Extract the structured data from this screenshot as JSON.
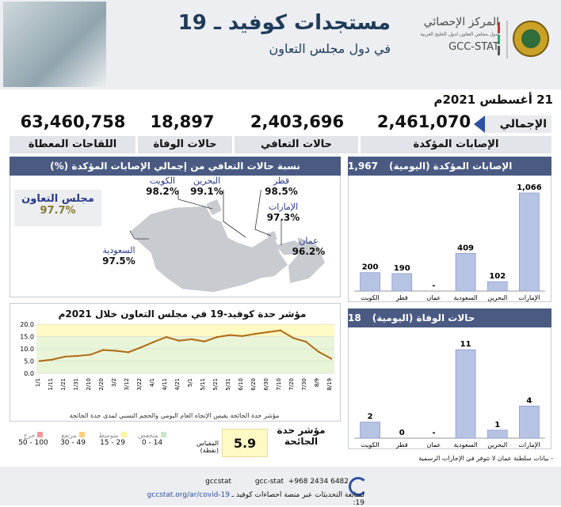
{
  "header": {
    "title": "مستجدات كوفيد ـ 19",
    "subtitle": "في دول مجلس التعاون",
    "org_name_ar": "المركز الإحصائي",
    "org_name_ar_sub": "لدول مجلس التعاون لدول الخليج العربية",
    "org_name_en": "GCC-STAT"
  },
  "date": "21 أغسطس 2021م",
  "totals": {
    "label": "الإجمالي",
    "confirmed": {
      "value": "2,461,070",
      "label": "الإصابات المؤكدة"
    },
    "recovered": {
      "value": "2,403,696",
      "label": "حالات التعافي"
    },
    "deaths": {
      "value": "18,897",
      "label": "حالات الوفاة"
    },
    "vaccines": {
      "value": "63,460,758",
      "label": "اللقاحات المعطاة"
    }
  },
  "recovery_map": {
    "title": "نسبة حالات التعافي من إجمالي الإصابات المؤكدة (%)",
    "gcc_label": "مجلس التعاون",
    "gcc_value": "97.7%",
    "countries": [
      {
        "name": "الكويت",
        "value": "98.2%"
      },
      {
        "name": "البحرين",
        "value": "99.1%"
      },
      {
        "name": "قطر",
        "value": "98.5%"
      },
      {
        "name": "الإمارات",
        "value": "97.3%"
      },
      {
        "name": "عمان",
        "value": "96.2%"
      },
      {
        "name": "السعودية",
        "value": "97.5%"
      }
    ]
  },
  "chart_data": [
    {
      "type": "bar",
      "title": "الإصابات المؤكدة (اليومية)",
      "total": "1,967",
      "categories": [
        "الكويت",
        "قطر",
        "عمان",
        "السعودية",
        "البحرين",
        "الإمارات"
      ],
      "values": [
        200,
        190,
        null,
        409,
        102,
        1066
      ],
      "labels": [
        "200",
        "190",
        "-",
        "409",
        "102",
        "1,066"
      ],
      "ylim": [
        0,
        1100
      ]
    },
    {
      "type": "bar",
      "title": "حالات الوفاة (اليومية)",
      "total": "18",
      "categories": [
        "الكويت",
        "قطر",
        "عمان",
        "السعودية",
        "البحرين",
        "الإمارات"
      ],
      "values": [
        2,
        0,
        null,
        11,
        1,
        4
      ],
      "labels": [
        "2",
        "0",
        "-",
        "11",
        "1",
        "4"
      ],
      "ylim": [
        0,
        12
      ]
    },
    {
      "type": "line",
      "title": "مؤشر حدة كوفيد-19 في مجلس التعاون خلال 2021م",
      "note": "مؤشر حدة الجائحة يقيس الإتجاه العام اليومي والحجم النسبي لمدى حدة الجائحة",
      "ylim": [
        0,
        20
      ],
      "yticks": [
        "0.0",
        "5.0",
        "10.0",
        "15.0",
        "20.0"
      ],
      "x_ticks": [
        "1/1",
        "1/11",
        "1/21",
        "1/31",
        "2/10",
        "2/20",
        "3/2",
        "3/12",
        "3/22",
        "4/1",
        "4/11",
        "4/21",
        "5/1",
        "5/11",
        "5/21",
        "5/31",
        "6/10",
        "6/20",
        "6/30",
        "7/10",
        "7/20",
        "7/30",
        "8/9",
        "8/19"
      ],
      "x": [
        "1/1",
        "1/11",
        "1/21",
        "1/31",
        "2/10",
        "2/20",
        "3/2",
        "3/12",
        "3/22",
        "4/1",
        "4/11",
        "4/21",
        "5/1",
        "5/11",
        "5/21",
        "5/31",
        "6/10",
        "6/20",
        "6/30",
        "7/10",
        "7/20",
        "7/30",
        "8/9",
        "8/19"
      ],
      "values": [
        5.0,
        5.6,
        6.8,
        7.1,
        7.6,
        9.5,
        9.2,
        8.6,
        10.6,
        12.8,
        14.8,
        13.3,
        13.9,
        13.0,
        14.8,
        15.6,
        15.2,
        16.1,
        16.8,
        17.5,
        14.4,
        12.9,
        8.8,
        6.0
      ]
    }
  ],
  "severity": {
    "label": "مؤشر حدة الجائحة",
    "value": "5.9",
    "scale_label": "المقياس (نقطة)",
    "levels": [
      {
        "name": "منخفض",
        "range": "0 - 14",
        "color": "#c8e6c9"
      },
      {
        "name": "متوسط",
        "range": "15 - 29",
        "color": "#fff59d"
      },
      {
        "name": "مرتفع",
        "range": "30 - 49",
        "color": "#ffcc80"
      },
      {
        "name": "حرج",
        "range": "50 - 100",
        "color": "#ef9a9a"
      }
    ]
  },
  "note": "- بيانات سلطنة عمان لا تتوفر في الإجازات الرسمية",
  "footer": {
    "phone": "+968 2434 6482",
    "social1": "gcc-stat",
    "social2": "gccstat",
    "text": "لمتابعة التحديثات عبر منصة احصاءات كوفيد ـ 19:",
    "url": "gccstat.org/ar/covid-19"
  },
  "colors": {
    "bar": "#b7c3e3",
    "bar_stroke": "#8c9bc8",
    "accent": "#2f52a0",
    "header_band": "#4a5a82",
    "line": "#b06a10",
    "map_fill": "#c8cbd0"
  }
}
